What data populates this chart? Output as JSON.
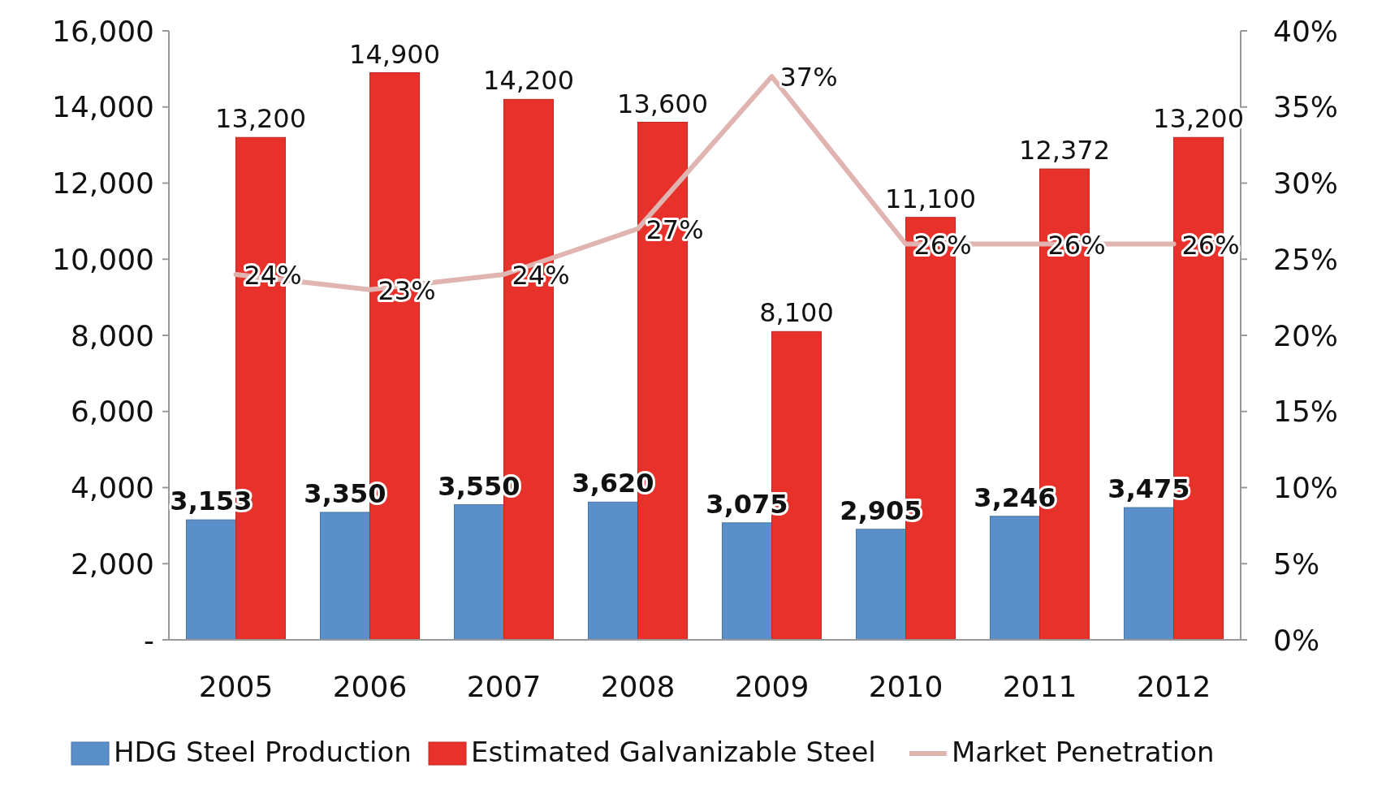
{
  "chart_data": {
    "type": "bar",
    "categories": [
      "2005",
      "2006",
      "2007",
      "2008",
      "2009",
      "2010",
      "2011",
      "2012"
    ],
    "series": [
      {
        "name": "HDG Steel Production",
        "color": "#5b8fc9",
        "values": [
          3153,
          3350,
          3550,
          3620,
          3075,
          2905,
          3246,
          3475
        ],
        "value_labels": [
          "3,153",
          "3,350",
          "3,550",
          "3,620",
          "3,075",
          "2,905",
          "3,246",
          "3,475"
        ]
      },
      {
        "name": "Estimated Galvanizable Steel",
        "color": "#e8312a",
        "values": [
          13200,
          14900,
          14200,
          13600,
          8100,
          11100,
          12372,
          13200
        ],
        "value_labels": [
          "13,200",
          "14,900",
          "14,200",
          "13,600",
          "8,100",
          "11,100",
          "12,372",
          "13,200"
        ]
      },
      {
        "name": "Market Penetration",
        "color": "#e0b4b0",
        "type": "line",
        "axis": "y2",
        "values": [
          24,
          23,
          24,
          27,
          37,
          26,
          26,
          26
        ],
        "value_labels": [
          "24%",
          "23%",
          "24%",
          "27%",
          "37%",
          "26%",
          "26%",
          "26%"
        ]
      }
    ],
    "ylim": [
      0,
      16000
    ],
    "yticks": [
      {
        "value": 0,
        "label": "-"
      },
      {
        "value": 2000,
        "label": "2,000"
      },
      {
        "value": 4000,
        "label": "4,000"
      },
      {
        "value": 6000,
        "label": "6,000"
      },
      {
        "value": 8000,
        "label": "8,000"
      },
      {
        "value": 10000,
        "label": "10,000"
      },
      {
        "value": 12000,
        "label": "12,000"
      },
      {
        "value": 14000,
        "label": "14,000"
      },
      {
        "value": 16000,
        "label": "16,000"
      }
    ],
    "y2lim": [
      0,
      40
    ],
    "y2ticks": [
      {
        "value": 0,
        "label": "0%"
      },
      {
        "value": 5,
        "label": "5%"
      },
      {
        "value": 10,
        "label": "10%"
      },
      {
        "value": 15,
        "label": "15%"
      },
      {
        "value": 20,
        "label": "20%"
      },
      {
        "value": 25,
        "label": "25%"
      },
      {
        "value": 30,
        "label": "30%"
      },
      {
        "value": 35,
        "label": "35%"
      },
      {
        "value": 40,
        "label": "40%"
      }
    ],
    "legend": "bottom"
  }
}
